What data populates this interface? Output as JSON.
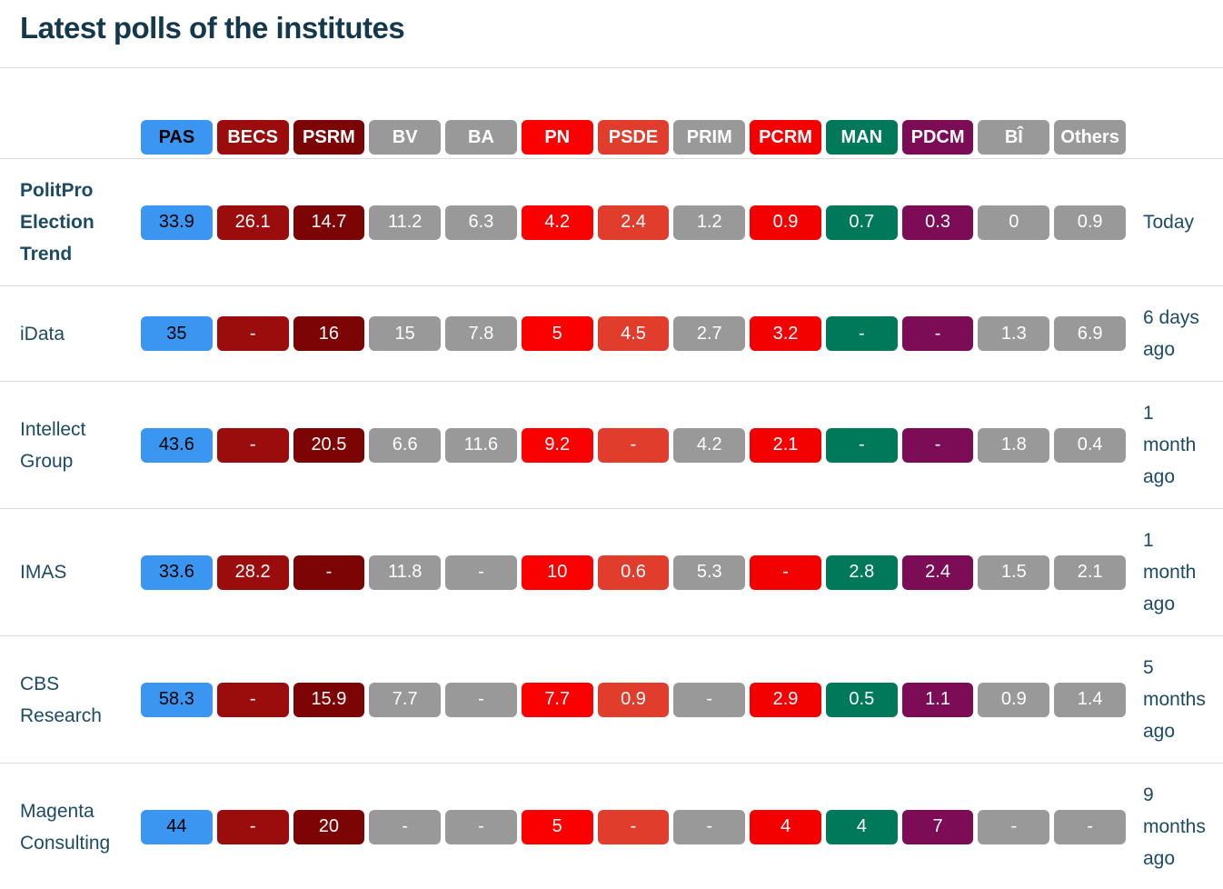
{
  "page": {
    "title": "Latest polls of the institutes"
  },
  "colors": {
    "title_text": "#14384C",
    "label_text": "#1C4B63",
    "divider": "#DBDBDB",
    "background": "#FFFFFF"
  },
  "parties": [
    {
      "label": "PAS",
      "color": "#3B96F2",
      "text": "#000000"
    },
    {
      "label": "BECS",
      "color": "#9B0C0C",
      "text": "#FFFFFF"
    },
    {
      "label": "PSRM",
      "color": "#7D0404",
      "text": "#FFFFFF"
    },
    {
      "label": "BV",
      "color": "#999999",
      "text": "#FFFFFF"
    },
    {
      "label": "BA",
      "color": "#999999",
      "text": "#FFFFFF"
    },
    {
      "label": "PN",
      "color": "#FB0000",
      "text": "#FFFFFF"
    },
    {
      "label": "PSDE",
      "color": "#E13D2D",
      "text": "#FFFFFF"
    },
    {
      "label": "PRIM",
      "color": "#999999",
      "text": "#FFFFFF"
    },
    {
      "label": "PCRM",
      "color": "#F30000",
      "text": "#FFFFFF"
    },
    {
      "label": "MAN",
      "color": "#00795B",
      "text": "#FFFFFF"
    },
    {
      "label": "PDCM",
      "color": "#7B0C55",
      "text": "#FFFFFF"
    },
    {
      "label": "BÎ",
      "color": "#999999",
      "text": "#FFFFFF"
    },
    {
      "label": "Others",
      "color": "#999999",
      "text": "#FFFFFF"
    }
  ],
  "rows": [
    {
      "institute": "PolitPro Election Trend",
      "bold": true,
      "date": "Today",
      "values": [
        "33.9",
        "26.1",
        "14.7",
        "11.2",
        "6.3",
        "4.2",
        "2.4",
        "1.2",
        "0.9",
        "0.7",
        "0.3",
        "0",
        "0.9"
      ]
    },
    {
      "institute": "iData",
      "bold": false,
      "date": "6 days ago",
      "values": [
        "35",
        "-",
        "16",
        "15",
        "7.8",
        "5",
        "4.5",
        "2.7",
        "3.2",
        "-",
        "-",
        "1.3",
        "6.9"
      ]
    },
    {
      "institute": "Intellect Group",
      "bold": false,
      "date": "1 month ago",
      "values": [
        "43.6",
        "-",
        "20.5",
        "6.6",
        "11.6",
        "9.2",
        "-",
        "4.2",
        "2.1",
        "-",
        "-",
        "1.8",
        "0.4"
      ]
    },
    {
      "institute": "IMAS",
      "bold": false,
      "date": "1 month ago",
      "values": [
        "33.6",
        "28.2",
        "-",
        "11.8",
        "-",
        "10",
        "0.6",
        "5.3",
        "-",
        "2.8",
        "2.4",
        "1.5",
        "2.1"
      ]
    },
    {
      "institute": "CBS Research",
      "bold": false,
      "date": "5 months ago",
      "values": [
        "58.3",
        "-",
        "15.9",
        "7.7",
        "-",
        "7.7",
        "0.9",
        "-",
        "2.9",
        "0.5",
        "1.1",
        "0.9",
        "1.4"
      ]
    },
    {
      "institute": "Magenta Consulting",
      "bold": false,
      "date": "9 months ago",
      "values": [
        "44",
        "-",
        "20",
        "-",
        "-",
        "5",
        "-",
        "-",
        "4",
        "4",
        "7",
        "-",
        "-"
      ]
    }
  ],
  "chart_data": {
    "type": "table",
    "title": "Latest polls of the institutes",
    "columns": [
      "PAS",
      "BECS",
      "PSRM",
      "BV",
      "BA",
      "PN",
      "PSDE",
      "PRIM",
      "PCRM",
      "MAN",
      "PDCM",
      "BÎ",
      "Others"
    ],
    "rows": [
      {
        "institute": "PolitPro Election Trend",
        "date": "Today",
        "values": [
          33.9,
          26.1,
          14.7,
          11.2,
          6.3,
          4.2,
          2.4,
          1.2,
          0.9,
          0.7,
          0.3,
          0,
          0.9
        ]
      },
      {
        "institute": "iData",
        "date": "6 days ago",
        "values": [
          35,
          null,
          16,
          15,
          7.8,
          5,
          4.5,
          2.7,
          3.2,
          null,
          null,
          1.3,
          6.9
        ]
      },
      {
        "institute": "Intellect Group",
        "date": "1 month ago",
        "values": [
          43.6,
          null,
          20.5,
          6.6,
          11.6,
          9.2,
          null,
          4.2,
          2.1,
          null,
          null,
          1.8,
          0.4
        ]
      },
      {
        "institute": "IMAS",
        "date": "1 month ago",
        "values": [
          33.6,
          28.2,
          null,
          11.8,
          null,
          10,
          0.6,
          5.3,
          null,
          2.8,
          2.4,
          1.5,
          2.1
        ]
      },
      {
        "institute": "CBS Research",
        "date": "5 months ago",
        "values": [
          58.3,
          null,
          15.9,
          7.7,
          null,
          7.7,
          0.9,
          null,
          2.9,
          0.5,
          1.1,
          0.9,
          1.4
        ]
      },
      {
        "institute": "Magenta Consulting",
        "date": "9 months ago",
        "values": [
          44,
          null,
          20,
          null,
          null,
          5,
          null,
          null,
          4,
          4,
          7,
          null,
          null
        ]
      }
    ],
    "unit": "percent"
  }
}
